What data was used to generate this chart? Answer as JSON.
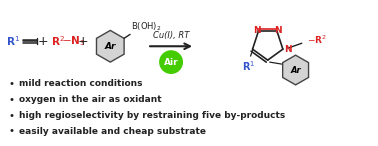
{
  "fig_width": 3.78,
  "fig_height": 1.46,
  "dpi": 100,
  "bg_color": "#ffffff",
  "bullet_points": [
    "mild reaction conditions",
    "oxygen in the air as oxidant",
    "high regioselectivity by restraining five by-products",
    "easily available and cheap substrate"
  ],
  "blue": "#3355cc",
  "red": "#dd2222",
  "black": "#222222",
  "green_air": "#44cc00",
  "gray_ring": "#cccccc"
}
